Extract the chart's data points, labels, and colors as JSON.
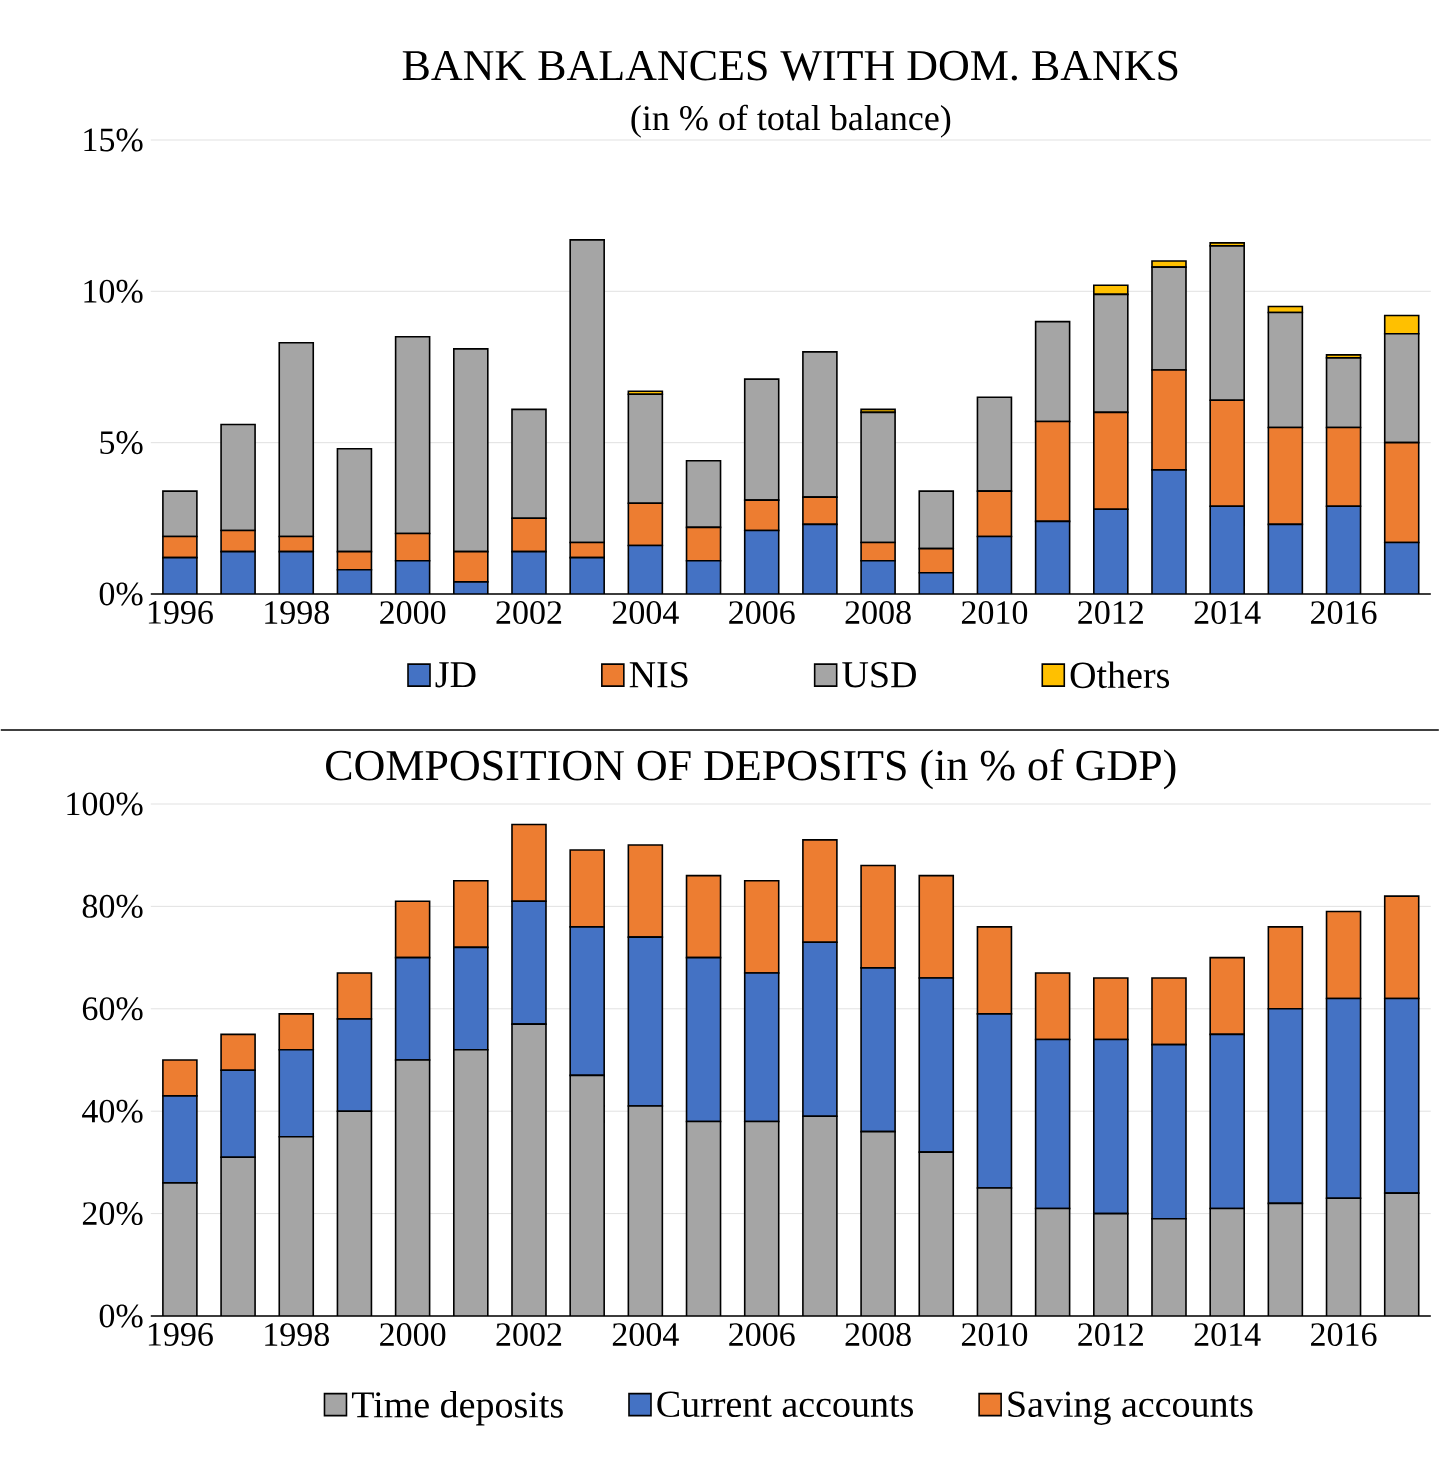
{
  "chart_data": [
    {
      "type": "bar",
      "title": "BANK BALANCES WITH DOM. BANKS",
      "subtitle": "(in % of total balance)",
      "stacked": true,
      "grid": "y",
      "legend": "bottom",
      "categories": [
        "1996",
        null,
        "1998",
        null,
        "2000",
        null,
        "2002",
        null,
        "2004",
        null,
        "2006",
        null,
        "2008",
        null,
        "2010",
        null,
        "2012",
        null,
        "2014",
        null,
        "2016",
        null
      ],
      "ylim": [
        0,
        15
      ],
      "yticks": [
        {
          "value": 0,
          "label": "0%"
        },
        {
          "value": 5,
          "label": "5%"
        },
        {
          "value": 10,
          "label": "10%"
        },
        {
          "value": 15,
          "label": "15%"
        }
      ],
      "series": [
        {
          "name": "JD",
          "color": "#4472c4",
          "values": [
            1.2,
            1.4,
            1.4,
            0.8,
            1.1,
            0.4,
            1.4,
            1.2,
            1.6,
            1.1,
            2.1,
            2.3,
            1.1,
            0.7,
            1.9,
            2.4,
            2.8,
            4.1,
            2.9,
            2.3,
            2.9,
            1.7
          ]
        },
        {
          "name": "NIS",
          "color": "#ed7d31",
          "values": [
            0.7,
            0.7,
            0.5,
            0.6,
            0.9,
            1.0,
            1.1,
            0.5,
            1.4,
            1.1,
            1.0,
            0.9,
            0.6,
            0.8,
            1.5,
            3.3,
            3.2,
            3.3,
            3.5,
            3.2,
            2.6,
            3.3
          ]
        },
        {
          "name": "USD",
          "color": "#a5a5a5",
          "values": [
            1.5,
            3.5,
            6.4,
            3.4,
            6.5,
            6.7,
            3.6,
            10.0,
            3.6,
            2.2,
            4.0,
            4.8,
            4.3,
            1.9,
            3.1,
            3.3,
            3.9,
            3.4,
            5.1,
            3.8,
            2.3,
            3.6
          ]
        },
        {
          "name": "Others",
          "color": "#ffc000",
          "values": [
            0,
            0,
            0,
            0,
            0,
            0,
            0,
            0,
            0.1,
            0,
            0,
            0,
            0.1,
            0,
            0,
            0,
            0.3,
            0.2,
            0.1,
            0.2,
            0.1,
            0.6
          ]
        }
      ]
    },
    {
      "type": "bar",
      "title": "COMPOSITION  OF DEPOSITS  (in % of GDP)",
      "stacked": true,
      "grid": "y",
      "legend": "bottom",
      "categories": [
        "1996",
        null,
        "1998",
        null,
        "2000",
        null,
        "2002",
        null,
        "2004",
        null,
        "2006",
        null,
        "2008",
        null,
        "2010",
        null,
        "2012",
        null,
        "2014",
        null,
        "2016",
        null
      ],
      "ylim": [
        0,
        100
      ],
      "yticks": [
        {
          "value": 0,
          "label": "0%"
        },
        {
          "value": 20,
          "label": "20%"
        },
        {
          "value": 40,
          "label": "40%"
        },
        {
          "value": 60,
          "label": "60%"
        },
        {
          "value": 80,
          "label": "80%"
        },
        {
          "value": 100,
          "label": "100%"
        }
      ],
      "series": [
        {
          "name": "Time deposits",
          "color": "#a5a5a5",
          "values": [
            26,
            31,
            35,
            40,
            50,
            52,
            57,
            47,
            41,
            38,
            38,
            39,
            36,
            32,
            25,
            21,
            20,
            19,
            21,
            22,
            23,
            24
          ]
        },
        {
          "name": "Current accounts",
          "color": "#4472c4",
          "values": [
            17,
            17,
            17,
            18,
            20,
            20,
            24,
            29,
            33,
            32,
            29,
            34,
            32,
            34,
            34,
            33,
            34,
            34,
            34,
            38,
            39,
            38
          ]
        },
        {
          "name": "Saving accounts",
          "color": "#ed7d31",
          "values": [
            7,
            7,
            7,
            9,
            11,
            13,
            15,
            15,
            18,
            16,
            18,
            20,
            20,
            20,
            17,
            13,
            12,
            13,
            15,
            16,
            17,
            20
          ]
        }
      ]
    }
  ]
}
